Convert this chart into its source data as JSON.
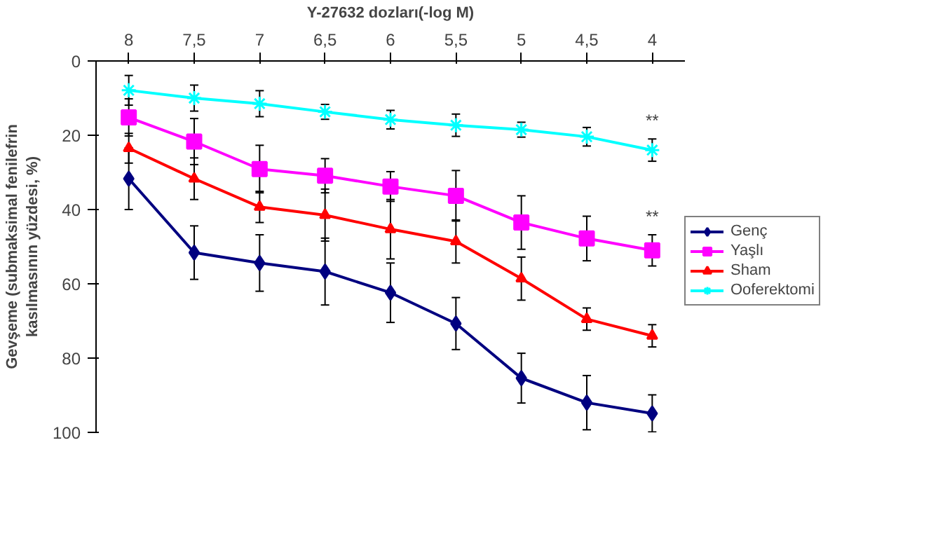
{
  "chart_data": {
    "type": "line",
    "xlabel": "Y-27632 dozları(-log M)",
    "ylabel": "Gevşeme (submaksimal fenilefrin kasılmasının yüzdesi, %)",
    "categories": [
      "8",
      "7,5",
      "7",
      "6,5",
      "6",
      "5,5",
      "5",
      "4,5",
      "4"
    ],
    "ylim": [
      100,
      0
    ],
    "yticks": [
      0,
      20,
      40,
      60,
      80,
      100
    ],
    "grid": false,
    "legend": "right",
    "series": [
      {
        "name": "Genç",
        "color": "#000080",
        "marker": "diamond",
        "values": [
          31.7,
          51.6,
          54.4,
          56.7,
          62.4,
          70.7,
          85.4,
          92,
          94.9
        ],
        "errors": [
          8.3,
          7.2,
          7.6,
          9,
          8,
          7,
          6.7,
          7.3,
          5
        ]
      },
      {
        "name": "Yaşlı",
        "color": "#ff00ff",
        "marker": "square",
        "values": [
          15.2,
          21.7,
          29.1,
          30.9,
          33.8,
          36.3,
          43.5,
          47.8,
          51
        ],
        "errors": [
          5,
          6.2,
          6.4,
          4.6,
          4,
          6.8,
          7.2,
          6,
          4.2
        ]
      },
      {
        "name": "Sham",
        "color": "#ff0000",
        "marker": "triangle",
        "values": [
          23.5,
          31.7,
          39.3,
          41.5,
          45.3,
          48.6,
          58.6,
          69.5,
          74
        ],
        "errors": [
          4,
          5.6,
          4.2,
          7,
          8,
          5.8,
          5.8,
          3,
          3
        ]
      },
      {
        "name": "Ooferektomi",
        "color": "#00ffff",
        "marker": "cross",
        "values": [
          7.9,
          10,
          11.5,
          13.7,
          15.8,
          17.3,
          18.5,
          20.4,
          24
        ],
        "errors": [
          4,
          3.5,
          3.5,
          2,
          2.5,
          3,
          2,
          2.5,
          3
        ]
      }
    ],
    "annotations": [
      "**",
      "**"
    ]
  }
}
